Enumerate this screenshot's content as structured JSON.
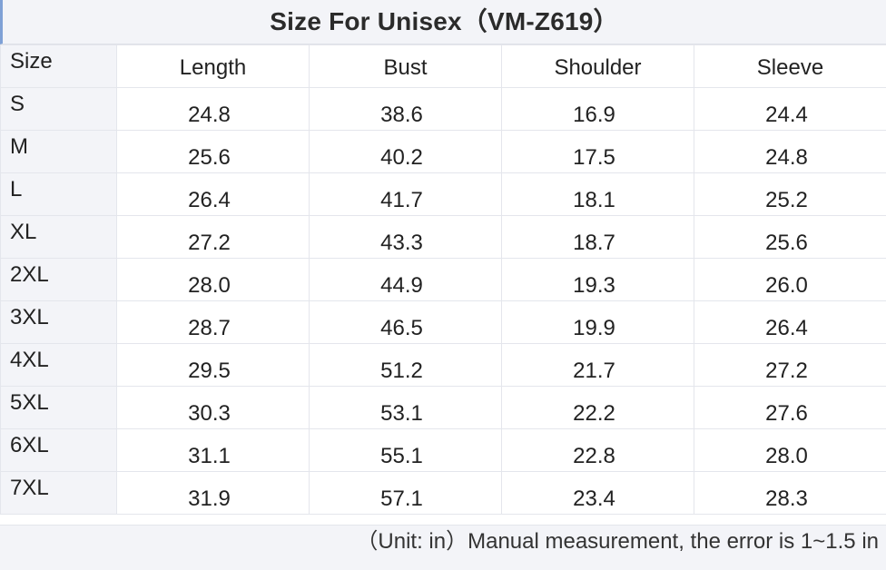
{
  "title": "Size For Unisex（VM-Z619）",
  "columns": [
    "Size",
    "Length",
    "Bust",
    "Shoulder",
    "Sleeve"
  ],
  "rows": [
    [
      "S",
      "24.8",
      "38.6",
      "16.9",
      "24.4"
    ],
    [
      "M",
      "25.6",
      "40.2",
      "17.5",
      "24.8"
    ],
    [
      "L",
      "26.4",
      "41.7",
      "18.1",
      "25.2"
    ],
    [
      "XL",
      "27.2",
      "43.3",
      "18.7",
      "25.6"
    ],
    [
      "2XL",
      "28.0",
      "44.9",
      "19.3",
      "26.0"
    ],
    [
      "3XL",
      "28.7",
      "46.5",
      "19.9",
      "26.4"
    ],
    [
      "4XL",
      "29.5",
      "51.2",
      "21.7",
      "27.2"
    ],
    [
      "5XL",
      "30.3",
      "53.1",
      "22.2",
      "27.6"
    ],
    [
      "6XL",
      "31.1",
      "55.1",
      "22.8",
      "28.0"
    ],
    [
      "7XL",
      "31.9",
      "57.1",
      "23.4",
      "28.3"
    ]
  ],
  "note": "（Unit: in）Manual measurement, the error is 1~1.5 in",
  "colors": {
    "header_bg": "#f3f4f8",
    "grid_line": "#e4e6ec",
    "title_accent": "#7fa1d6"
  }
}
